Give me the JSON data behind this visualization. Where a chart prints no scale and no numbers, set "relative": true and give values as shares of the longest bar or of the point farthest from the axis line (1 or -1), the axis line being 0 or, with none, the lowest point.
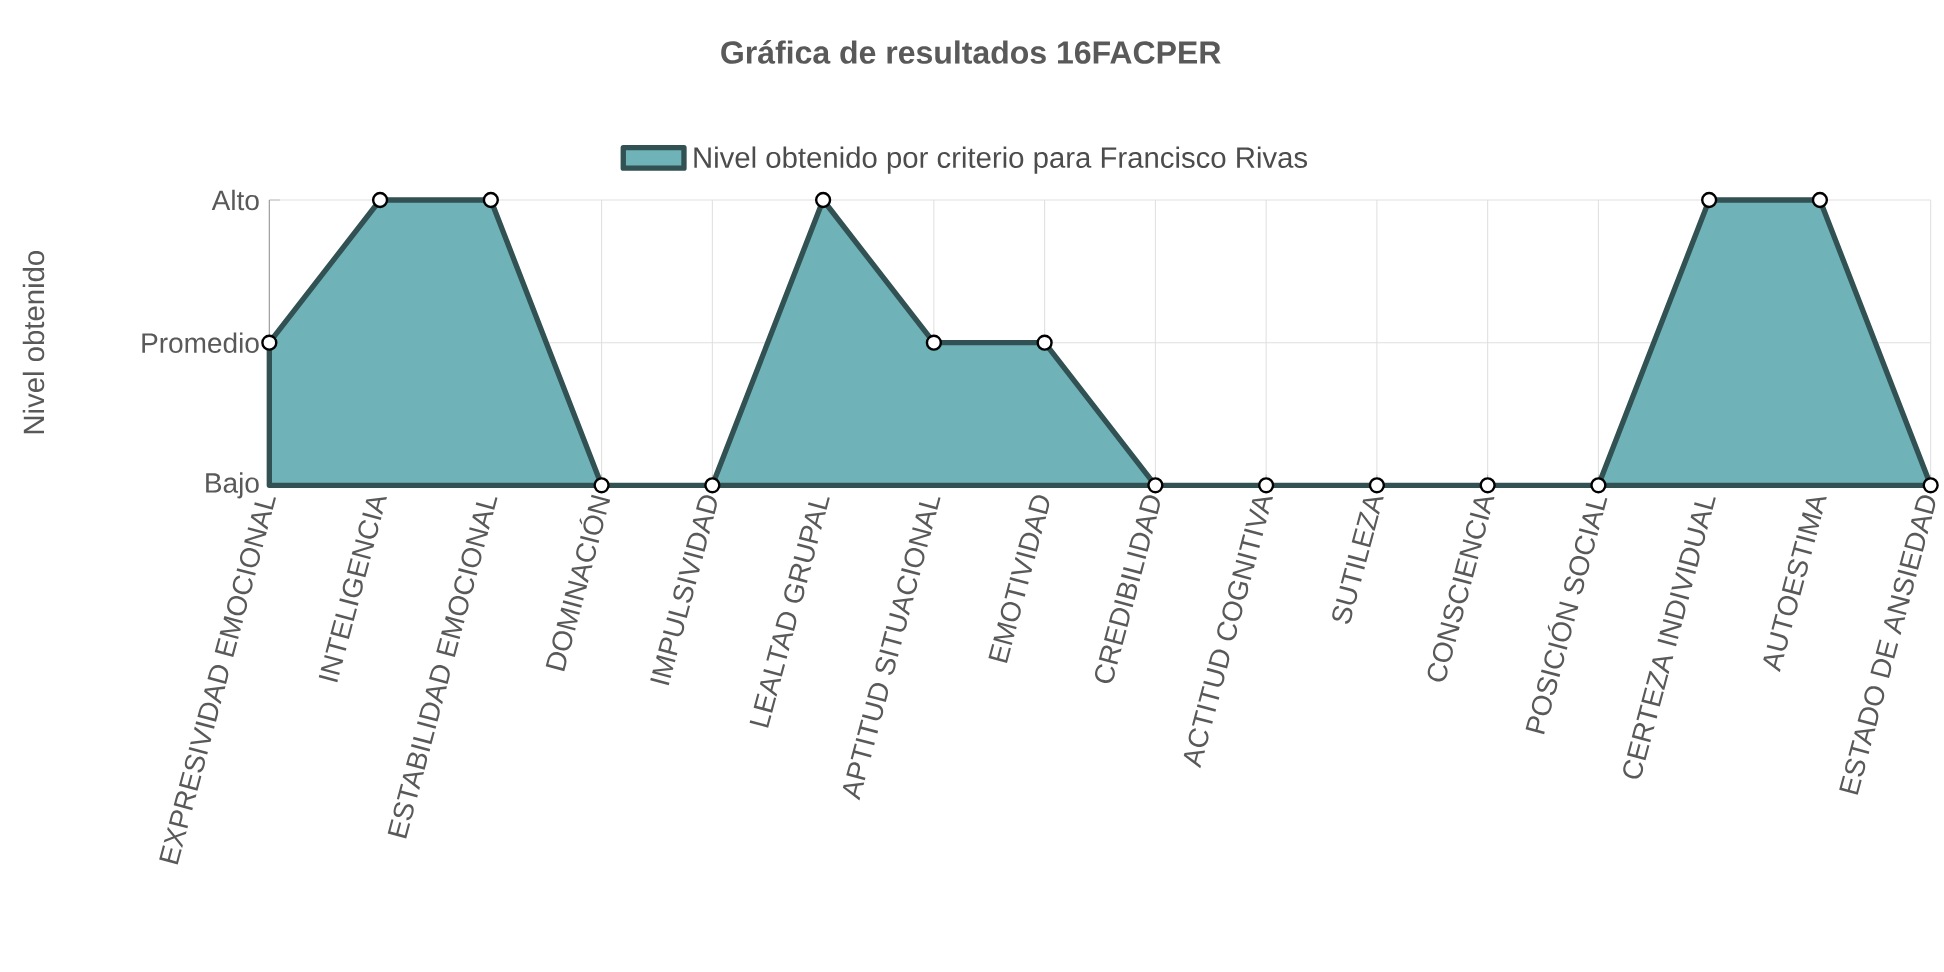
{
  "chart_data": {
    "type": "area",
    "title": "Gráfica de resultados 16FACPER",
    "ylabel": "Nivel obtenido",
    "relative": true,
    "categories": [
      "EXPRESIVIDAD EMOCIONAL",
      "INTELIGENCIA",
      "ESTABILIDAD EMOCIONAL",
      "DOMINACIÓN",
      "IMPULSIVIDAD",
      "LEALTAD GRUPAL",
      "APTITUD SITUACIONAL",
      "EMOTIVIDAD",
      "CREDIBILIDAD",
      "ACTITUD COGNITIVA",
      "SUTILEZA",
      "CONSCIENCIA",
      "POSICIÓN SOCIAL",
      "CERTEZA INDIVIDUAL",
      "AUTOESTIMA",
      "ESTADO DE ANSIEDAD"
    ],
    "series": [
      {
        "name": "Nivel obtenido por criterio para Francisco Rivas",
        "color": "#6fb3b8",
        "values": [
          0.5,
          1,
          1,
          0,
          0,
          1,
          0.5,
          0.5,
          0,
          0,
          0,
          0,
          0,
          1,
          1,
          0
        ]
      }
    ],
    "annotations": [
      "Bajo",
      "Promedio",
      "Alto"
    ],
    "grid": true,
    "legend": "top",
    "marker": "circle",
    "line_style": "solid"
  }
}
